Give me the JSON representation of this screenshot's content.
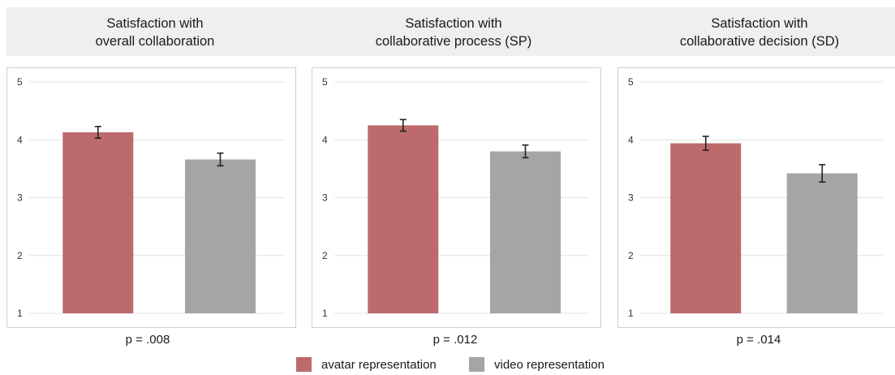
{
  "colors": {
    "avatar": "#bc6a6b",
    "video": "#a5a5a5",
    "grid": "#e3e3e3",
    "error_bar": "#222222"
  },
  "legend": [
    {
      "label": "avatar representation",
      "color": "#bc6a6b"
    },
    {
      "label": "video representation",
      "color": "#a5a5a5"
    }
  ],
  "chart_data": [
    {
      "type": "bar",
      "title_lines": [
        "Satisfaction with",
        "overall collaboration"
      ],
      "categories": [
        "avatar representation",
        "video representation"
      ],
      "values": [
        4.13,
        3.66
      ],
      "error": [
        0.1,
        0.11
      ],
      "ylim": [
        1,
        5
      ],
      "yticks": [
        "1",
        "2",
        "3",
        "4",
        "5"
      ],
      "grid": true,
      "p_value": "p = .008"
    },
    {
      "type": "bar",
      "title_lines": [
        "Satisfaction with",
        "collaborative process (SP)"
      ],
      "categories": [
        "avatar representation",
        "video representation"
      ],
      "values": [
        4.25,
        3.8
      ],
      "error": [
        0.1,
        0.11
      ],
      "ylim": [
        1,
        5
      ],
      "yticks": [
        "1",
        "2",
        "3",
        "4",
        "5"
      ],
      "grid": true,
      "p_value": "p = .012"
    },
    {
      "type": "bar",
      "title_lines": [
        "Satisfaction with",
        "collaborative decision (SD)"
      ],
      "categories": [
        "avatar representation",
        "video representation"
      ],
      "values": [
        3.94,
        3.42
      ],
      "error": [
        0.12,
        0.15
      ],
      "ylim": [
        1,
        5
      ],
      "yticks": [
        "1",
        "2",
        "3",
        "4",
        "5"
      ],
      "grid": true,
      "p_value": "p = .014"
    }
  ]
}
